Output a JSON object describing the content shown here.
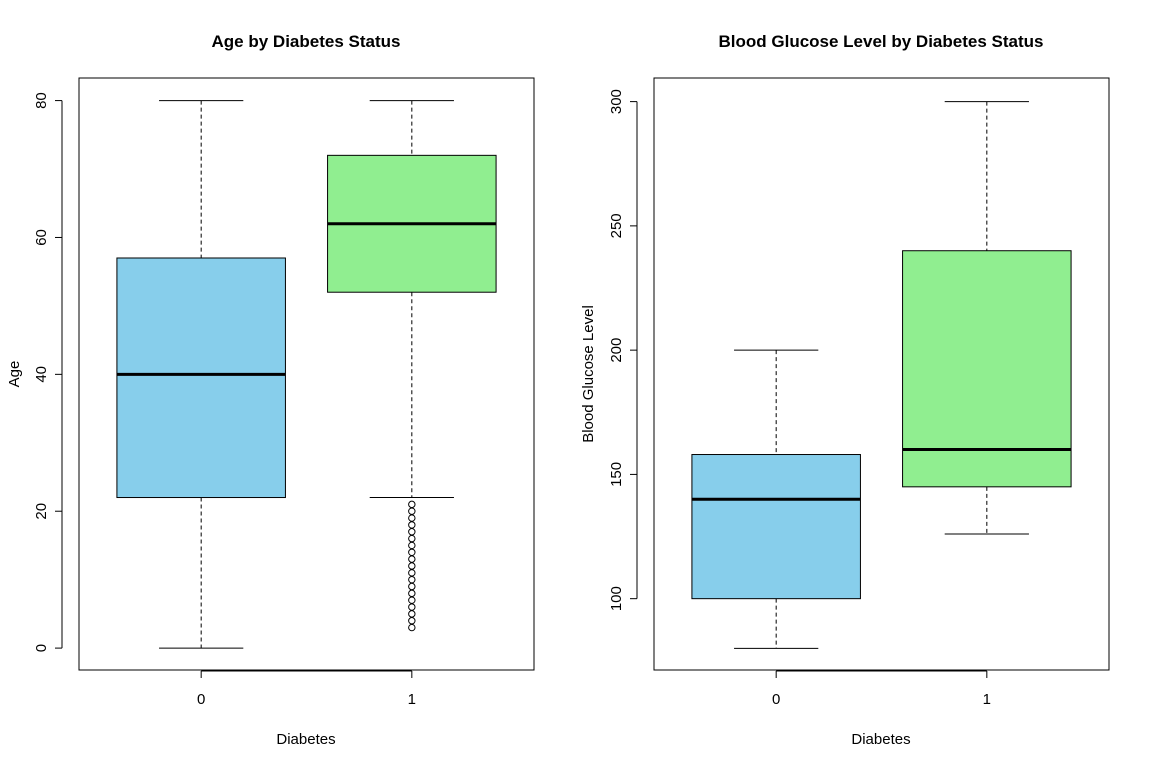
{
  "chart_data": [
    {
      "type": "box",
      "title": "Age by Diabetes Status",
      "xlabel": "Diabetes",
      "ylabel": "Age",
      "categories": [
        "0",
        "1"
      ],
      "ylim": [
        -3.2,
        83.3
      ],
      "yticks": [
        0,
        20,
        40,
        60,
        80
      ],
      "colors": [
        "#87CEEB",
        "#90EE90"
      ],
      "boxes": [
        {
          "category": "0",
          "whisker_low": 0,
          "q1": 22,
          "median": 40,
          "q3": 57,
          "whisker_high": 80,
          "outliers": []
        },
        {
          "category": "1",
          "whisker_low": 22,
          "q1": 52,
          "median": 62,
          "q3": 72,
          "whisker_high": 80,
          "outliers": [
            3,
            4,
            5,
            6,
            7,
            8,
            9,
            10,
            11,
            12,
            13,
            14,
            15,
            16,
            17,
            18,
            19,
            20,
            21
          ]
        }
      ]
    },
    {
      "type": "box",
      "title": "Blood Glucose Level by Diabetes Status",
      "xlabel": "Diabetes",
      "ylabel": "Blood Glucose Level",
      "categories": [
        "0",
        "1"
      ],
      "ylim": [
        71.3,
        309.5
      ],
      "yticks": [
        100,
        150,
        200,
        250,
        300
      ],
      "colors": [
        "#87CEEB",
        "#90EE90"
      ],
      "boxes": [
        {
          "category": "0",
          "whisker_low": 80,
          "q1": 100,
          "median": 140,
          "q3": 158,
          "whisker_high": 200,
          "outliers": []
        },
        {
          "category": "1",
          "whisker_low": 126,
          "q1": 145,
          "median": 160,
          "q3": 240,
          "whisker_high": 300,
          "outliers": []
        }
      ]
    }
  ]
}
